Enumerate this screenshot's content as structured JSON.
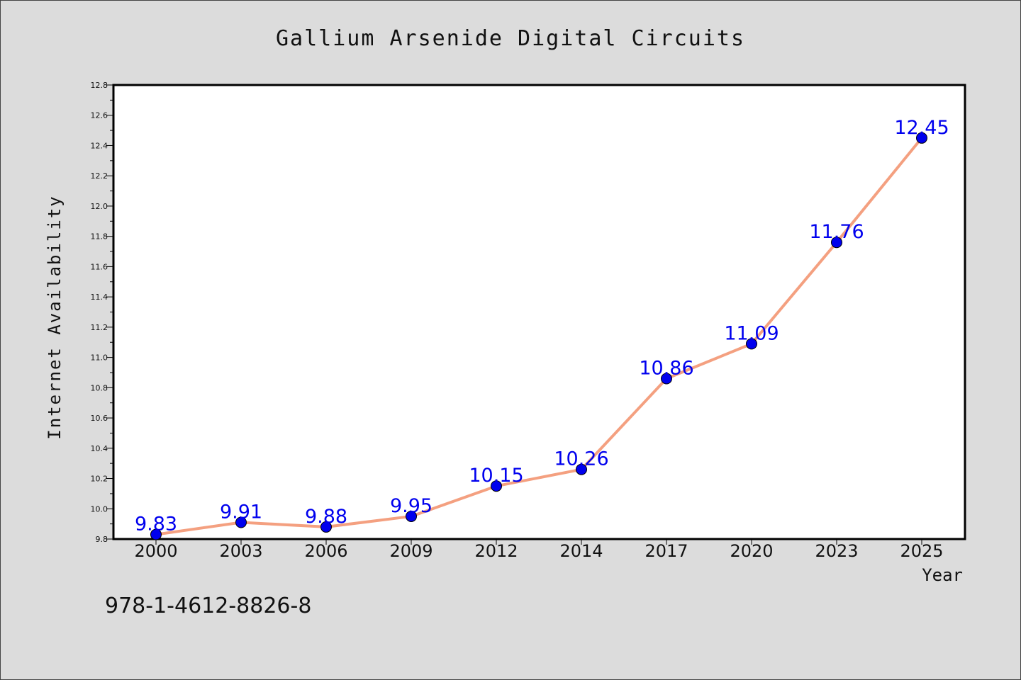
{
  "chart_data": {
    "type": "line",
    "title": "Gallium Arsenide Digital Circuits",
    "xlabel": "Year",
    "ylabel": "Internet Availability",
    "categories": [
      "2000",
      "2003",
      "2006",
      "2009",
      "2012",
      "2014",
      "2017",
      "2020",
      "2023",
      "2025"
    ],
    "values": [
      9.83,
      9.91,
      9.88,
      9.95,
      10.15,
      10.26,
      10.86,
      11.09,
      11.76,
      12.45
    ],
    "data_labels": [
      "9.83",
      "9.91",
      "9.88",
      "9.95",
      "10.15",
      "10.26",
      "10.86",
      "11.09",
      "11.76",
      "12.45"
    ],
    "ylim": [
      9.8,
      12.8
    ],
    "yticks": [
      "9.8",
      "10.0",
      "10.2",
      "10.4",
      "10.6",
      "10.8",
      "11.0",
      "11.2",
      "11.4",
      "11.6",
      "11.8",
      "12.0",
      "12.2",
      "12.4",
      "12.6",
      "12.8"
    ],
    "grid": false,
    "line_color": "#f4a080",
    "marker_color": "#0000ee",
    "label_color": "#0000ee",
    "background": "#dcdcdc",
    "plot_background": "#ffffff"
  },
  "footer": {
    "isbn": "978-1-4612-8826-8"
  }
}
